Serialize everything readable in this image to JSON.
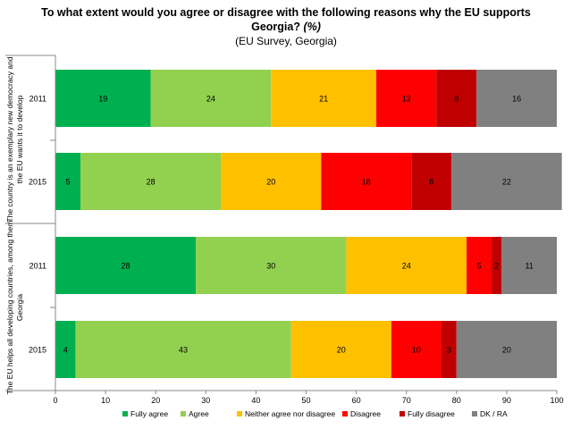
{
  "title_line1": "To what extent would you agree or disagree with the following reasons why the EU supports",
  "title_line2": "Georgia?",
  "title_unit": "(%)",
  "subtitle": "(EU Survey, Georgia)",
  "chart_data": {
    "type": "bar",
    "orientation": "horizontal",
    "stacked": true,
    "xlim": [
      0,
      100
    ],
    "xticks": [
      0,
      10,
      20,
      30,
      40,
      50,
      60,
      70,
      80,
      90,
      100
    ],
    "grid": false,
    "legend_position": "bottom",
    "groups": [
      {
        "label": "The country is an exemplary new democracy and the EU wants it to develop",
        "label_lines": [
          "The country is an exemplary new democracy and",
          "the EU wants it to develop"
        ],
        "rows": [
          {
            "year": "2011",
            "values": [
              19,
              24,
              21,
              12,
              8,
              16
            ]
          },
          {
            "year": "2015",
            "values": [
              5,
              28,
              20,
              18,
              8,
              22
            ]
          }
        ]
      },
      {
        "label": "The EU helps all developing countries, among them Georgia",
        "label_lines": [
          "The EU helps all developing countries, among them",
          "Georgia"
        ],
        "rows": [
          {
            "year": "2011",
            "values": [
              28,
              30,
              24,
              5,
              2,
              11
            ]
          },
          {
            "year": "2015",
            "values": [
              4,
              43,
              20,
              10,
              3,
              20
            ]
          }
        ]
      }
    ],
    "series": [
      {
        "name": "Fully agree",
        "color": "#00b050"
      },
      {
        "name": "Agree",
        "color": "#92d050"
      },
      {
        "name": "Neither agree nor disagree",
        "color": "#ffc000"
      },
      {
        "name": "Disagree",
        "color": "#ff0000"
      },
      {
        "name": "Fully disagree",
        "color": "#c00000"
      },
      {
        "name": "DK / RA",
        "color": "#808080"
      }
    ]
  }
}
